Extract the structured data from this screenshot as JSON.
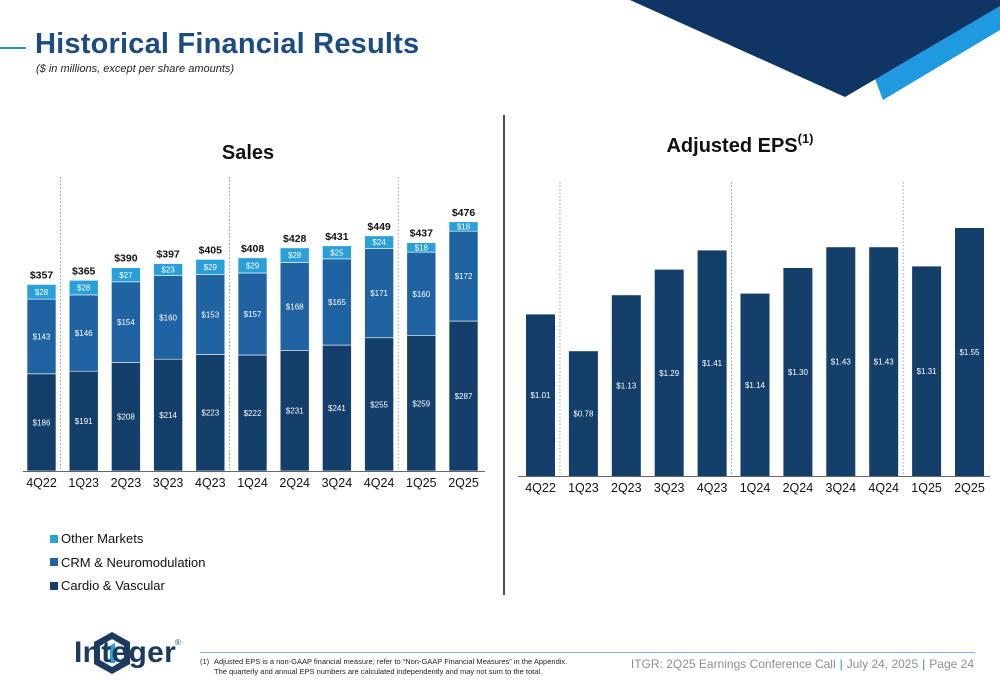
{
  "page": {
    "title": "Historical Financial Results",
    "subtitle": "($ in millions, except per share amounts)"
  },
  "chart_data": [
    {
      "type": "bar",
      "stacked": true,
      "title": "Sales",
      "categories": [
        "4Q22",
        "1Q23",
        "2Q23",
        "3Q23",
        "4Q23",
        "1Q24",
        "2Q24",
        "3Q24",
        "4Q24",
        "1Q25",
        "2Q25"
      ],
      "series": [
        {
          "name": "Cardio & Vascular",
          "values": [
            186,
            191,
            208,
            214,
            223,
            222,
            231,
            241,
            255,
            259,
            287
          ],
          "labels": [
            "$186",
            "$191",
            "$208",
            "$214",
            "$223",
            "$222",
            "$231",
            "$241",
            "$255",
            "$259",
            "$287"
          ],
          "color": "#143f6b"
        },
        {
          "name": "CRM & Neuromodulation",
          "values": [
            143,
            146,
            154,
            160,
            153,
            157,
            168,
            165,
            171,
            160,
            172
          ],
          "labels": [
            "$143",
            "$146",
            "$154",
            "$160",
            "$153",
            "$157",
            "$168",
            "$165",
            "$171",
            "$160",
            "$172"
          ],
          "color": "#1f63a3"
        },
        {
          "name": "Other Markets",
          "values": [
            28,
            28,
            27,
            23,
            29,
            29,
            28,
            25,
            24,
            18,
            18
          ],
          "labels": [
            "$28",
            "$28",
            "$27",
            "$23",
            "$29",
            "$29",
            "$28",
            "$25",
            "$24",
            "$18",
            "$18"
          ],
          "color": "#2a9fd8"
        }
      ],
      "totals": [
        "$357",
        "$365",
        "$390",
        "$397",
        "$405",
        "$408",
        "$428",
        "$431",
        "$449",
        "$437",
        "$476"
      ],
      "total_values": [
        357,
        365,
        390,
        397,
        405,
        408,
        428,
        431,
        449,
        437,
        476
      ],
      "ylim": [
        0,
        520
      ],
      "grid": false,
      "legend": "bottom-left"
    },
    {
      "type": "bar",
      "title": "Adjusted EPS",
      "title_superscript": "(1)",
      "categories": [
        "4Q22",
        "1Q23",
        "2Q23",
        "3Q23",
        "4Q23",
        "1Q24",
        "2Q24",
        "3Q24",
        "4Q24",
        "1Q25",
        "2Q25"
      ],
      "values": [
        1.01,
        0.78,
        1.13,
        1.29,
        1.41,
        1.14,
        1.3,
        1.43,
        1.43,
        1.31,
        1.55
      ],
      "labels": [
        "$1.01",
        "$0.78",
        "$1.13",
        "$1.29",
        "$1.41",
        "$1.14",
        "$1.30",
        "$1.43",
        "$1.43",
        "$1.31",
        "$1.55"
      ],
      "color": "#143f6b",
      "ylim": [
        0,
        1.72
      ],
      "grid": false
    }
  ],
  "legend_items": [
    {
      "label": "Other Markets",
      "color": "#2a9fd8"
    },
    {
      "label": "CRM & Neuromodulation",
      "color": "#1f63a3"
    },
    {
      "label": "Cardio & Vascular",
      "color": "#143f6b"
    }
  ],
  "logo": {
    "name": "Integer",
    "reg": "®"
  },
  "footnote": {
    "number": "(1)",
    "line1": "Adjusted EPS is a non-GAAP financial measure; refer to “Non-GAAP Financial Measures” in the Appendix.",
    "line2": "The quarterly and annual EPS numbers are calculated independently and may not sum to the total."
  },
  "footer": {
    "event": "ITGR: 2Q25 Earnings Conference Call",
    "date": "July 24, 2025",
    "page": "Page 24",
    "sep": "|"
  },
  "colors": {
    "accent": "#1f8fd6",
    "navy": "#1b4b82",
    "dark": "#143f6b"
  }
}
